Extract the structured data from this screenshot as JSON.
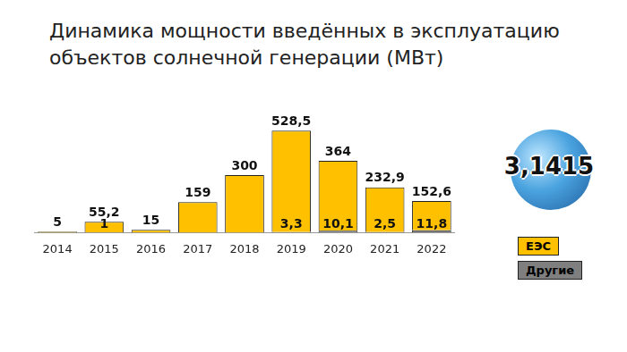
{
  "chart_data": {
    "type": "bar",
    "title": [
      "Динамика мощности введённых в эксплуатацию",
      "объектов солнечной генерации (МВт)"
    ],
    "categories": [
      "2014",
      "2015",
      "2016",
      "2017",
      "2018",
      "2019",
      "2020",
      "2021",
      "2022"
    ],
    "series": [
      {
        "name": "Другие",
        "color": "#7f7f7f",
        "values": [
          null,
          1,
          null,
          null,
          null,
          3.3,
          10.1,
          2.5,
          11.8
        ],
        "value_labels": [
          null,
          "1",
          null,
          null,
          null,
          "3,3",
          "10,1",
          "2,5",
          "11,8"
        ]
      },
      {
        "name": "ЕЭС",
        "color": "#ffc000",
        "values": [
          5,
          55.2,
          15,
          159,
          300,
          528.5,
          364,
          232.9,
          152.6
        ],
        "value_labels": [
          "5",
          "55,2",
          "15",
          "159",
          "300",
          "528,5",
          "364",
          "232,9",
          "152,6"
        ]
      }
    ],
    "stacked": true,
    "data_labels": true,
    "grid": false,
    "legend": "right",
    "tick_labels": "x",
    "ylim": [
      0,
      700
    ]
  },
  "logo": "3,1415"
}
